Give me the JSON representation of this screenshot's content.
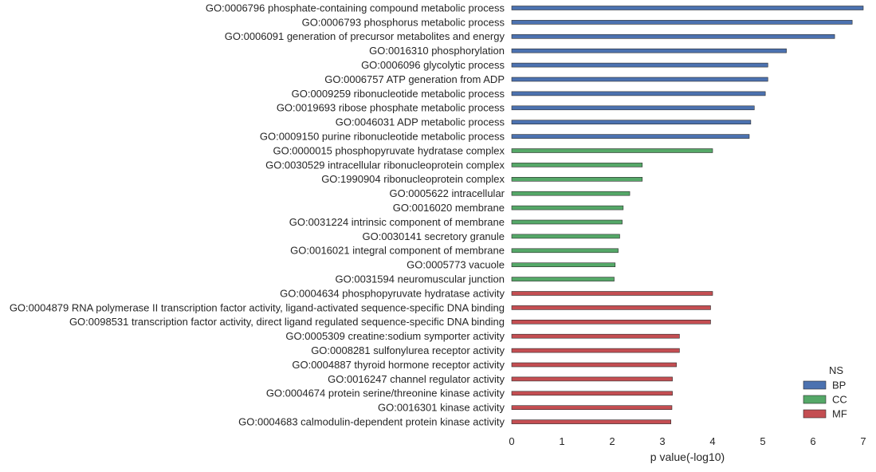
{
  "chart_data": {
    "type": "bar",
    "orientation": "horizontal",
    "xlabel": "p value(-log10)",
    "ylabel": "",
    "xlim": [
      0,
      7
    ],
    "xticks": [
      0,
      1,
      2,
      3,
      4,
      5,
      6,
      7
    ],
    "grid": false,
    "legend": {
      "title": "NS",
      "placement": "bottom-right",
      "entries": [
        {
          "name": "BP",
          "color": "#4c72b0"
        },
        {
          "name": "CC",
          "color": "#55a868"
        },
        {
          "name": "MF",
          "color": "#c44e52"
        }
      ]
    },
    "bars": [
      {
        "label": "GO:0006796 phosphate-containing compound metabolic process",
        "value": 7.0,
        "ns": "BP"
      },
      {
        "label": "GO:0006793 phosphorus metabolic process",
        "value": 6.78,
        "ns": "BP"
      },
      {
        "label": "GO:0006091 generation of precursor metabolites and energy",
        "value": 6.43,
        "ns": "BP"
      },
      {
        "label": "GO:0016310 phosphorylation",
        "value": 5.47,
        "ns": "BP"
      },
      {
        "label": "GO:0006096 glycolytic process",
        "value": 5.1,
        "ns": "BP"
      },
      {
        "label": "GO:0006757 ATP generation from ADP",
        "value": 5.1,
        "ns": "BP"
      },
      {
        "label": "GO:0009259 ribonucleotide metabolic process",
        "value": 5.05,
        "ns": "BP"
      },
      {
        "label": "GO:0019693 ribose phosphate metabolic process",
        "value": 4.83,
        "ns": "BP"
      },
      {
        "label": "GO:0046031 ADP metabolic process",
        "value": 4.76,
        "ns": "BP"
      },
      {
        "label": "GO:0009150 purine ribonucleotide metabolic process",
        "value": 4.73,
        "ns": "BP"
      },
      {
        "label": "GO:0000015 phosphopyruvate hydratase complex",
        "value": 4.0,
        "ns": "CC"
      },
      {
        "label": "GO:0030529 intracellular ribonucleoprotein complex",
        "value": 2.6,
        "ns": "CC"
      },
      {
        "label": "GO:1990904 ribonucleoprotein complex",
        "value": 2.6,
        "ns": "CC"
      },
      {
        "label": "GO:0005622 intracellular",
        "value": 2.35,
        "ns": "CC"
      },
      {
        "label": "GO:0016020 membrane",
        "value": 2.22,
        "ns": "CC"
      },
      {
        "label": "GO:0031224 intrinsic component of membrane",
        "value": 2.2,
        "ns": "CC"
      },
      {
        "label": "GO:0030141 secretory granule",
        "value": 2.15,
        "ns": "CC"
      },
      {
        "label": "GO:0016021 integral component of membrane",
        "value": 2.12,
        "ns": "CC"
      },
      {
        "label": "GO:0005773 vacuole",
        "value": 2.06,
        "ns": "CC"
      },
      {
        "label": "GO:0031594 neuromuscular junction",
        "value": 2.04,
        "ns": "CC"
      },
      {
        "label": "GO:0004634 phosphopyruvate hydratase activity",
        "value": 4.0,
        "ns": "MF"
      },
      {
        "label": "GO:0004879 RNA polymerase II transcription factor activity, ligand-activated sequence-specific DNA binding",
        "value": 3.96,
        "ns": "MF"
      },
      {
        "label": "GO:0098531 transcription factor activity, direct ligand regulated sequence-specific DNA binding",
        "value": 3.96,
        "ns": "MF"
      },
      {
        "label": "GO:0005309 creatine:sodium symporter activity",
        "value": 3.34,
        "ns": "MF"
      },
      {
        "label": "GO:0008281 sulfonylurea receptor activity",
        "value": 3.34,
        "ns": "MF"
      },
      {
        "label": "GO:0004887 thyroid hormone receptor activity",
        "value": 3.28,
        "ns": "MF"
      },
      {
        "label": "GO:0016247 channel regulator activity",
        "value": 3.2,
        "ns": "MF"
      },
      {
        "label": "GO:0004674 protein serine/threonine kinase activity",
        "value": 3.2,
        "ns": "MF"
      },
      {
        "label": "GO:0016301 kinase activity",
        "value": 3.19,
        "ns": "MF"
      },
      {
        "label": "GO:0004683 calmodulin-dependent protein kinase activity",
        "value": 3.17,
        "ns": "MF"
      }
    ]
  }
}
